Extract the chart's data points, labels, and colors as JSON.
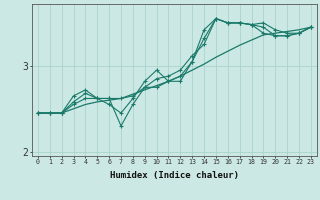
{
  "xlabel": "Humidex (Indice chaleur)",
  "background_color": "#cce8e4",
  "grid_color": "#aad4cc",
  "line_color": "#1a7a6a",
  "x_values": [
    0,
    1,
    2,
    3,
    4,
    5,
    6,
    7,
    8,
    9,
    10,
    11,
    12,
    13,
    14,
    15,
    16,
    17,
    18,
    19,
    20,
    21,
    22,
    23
  ],
  "series": [
    [
      2.45,
      2.45,
      2.45,
      2.58,
      2.68,
      2.62,
      2.62,
      2.62,
      2.65,
      2.75,
      2.85,
      2.88,
      2.95,
      3.12,
      3.25,
      3.55,
      3.5,
      3.5,
      3.48,
      3.5,
      3.42,
      3.38,
      3.38,
      3.45
    ],
    [
      2.45,
      2.45,
      2.45,
      2.65,
      2.72,
      2.62,
      2.55,
      2.45,
      2.62,
      2.82,
      2.95,
      2.82,
      2.88,
      3.05,
      3.32,
      3.55,
      3.5,
      3.5,
      3.48,
      3.38,
      3.35,
      3.35,
      3.38,
      3.45
    ],
    [
      2.45,
      2.45,
      2.45,
      2.55,
      2.62,
      2.62,
      2.62,
      2.3,
      2.55,
      2.75,
      2.75,
      2.82,
      2.82,
      3.05,
      3.42,
      3.55,
      3.5,
      3.5,
      3.48,
      3.45,
      3.35,
      3.35,
      3.38,
      3.45
    ],
    [
      2.45,
      2.45,
      2.45,
      2.5,
      2.55,
      2.58,
      2.6,
      2.62,
      2.67,
      2.72,
      2.77,
      2.82,
      2.88,
      2.95,
      3.02,
      3.1,
      3.17,
      3.24,
      3.3,
      3.36,
      3.38,
      3.4,
      3.42,
      3.45
    ]
  ],
  "ylim": [
    1.95,
    3.72
  ],
  "yticks": [
    2.0,
    3.0
  ],
  "xlim": [
    -0.5,
    23.5
  ]
}
